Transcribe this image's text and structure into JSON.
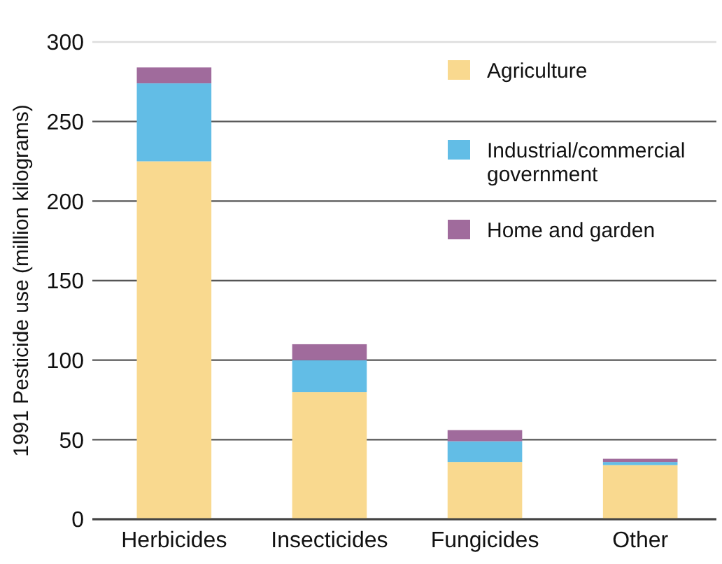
{
  "chart_data": {
    "type": "bar",
    "stacked": true,
    "ylabel": "1991 Pesticide use (million kilograms)",
    "categories": [
      "Herbicides",
      "Insecticides",
      "Fungicides",
      "Other"
    ],
    "series": [
      {
        "name": "Agriculture",
        "color": "#f9d98f",
        "values": [
          225,
          80,
          36,
          34
        ]
      },
      {
        "name": "Industrial/commercial government",
        "color": "#62bde6",
        "values": [
          49,
          20,
          13,
          2
        ]
      },
      {
        "name": "Home and  garden",
        "color": "#a06b9c",
        "values": [
          10,
          10,
          7,
          2
        ]
      }
    ],
    "ylim": [
      0,
      300
    ],
    "yticks": [
      0,
      50,
      100,
      150,
      200,
      250,
      300
    ],
    "grid": "y",
    "legend": "top right"
  }
}
